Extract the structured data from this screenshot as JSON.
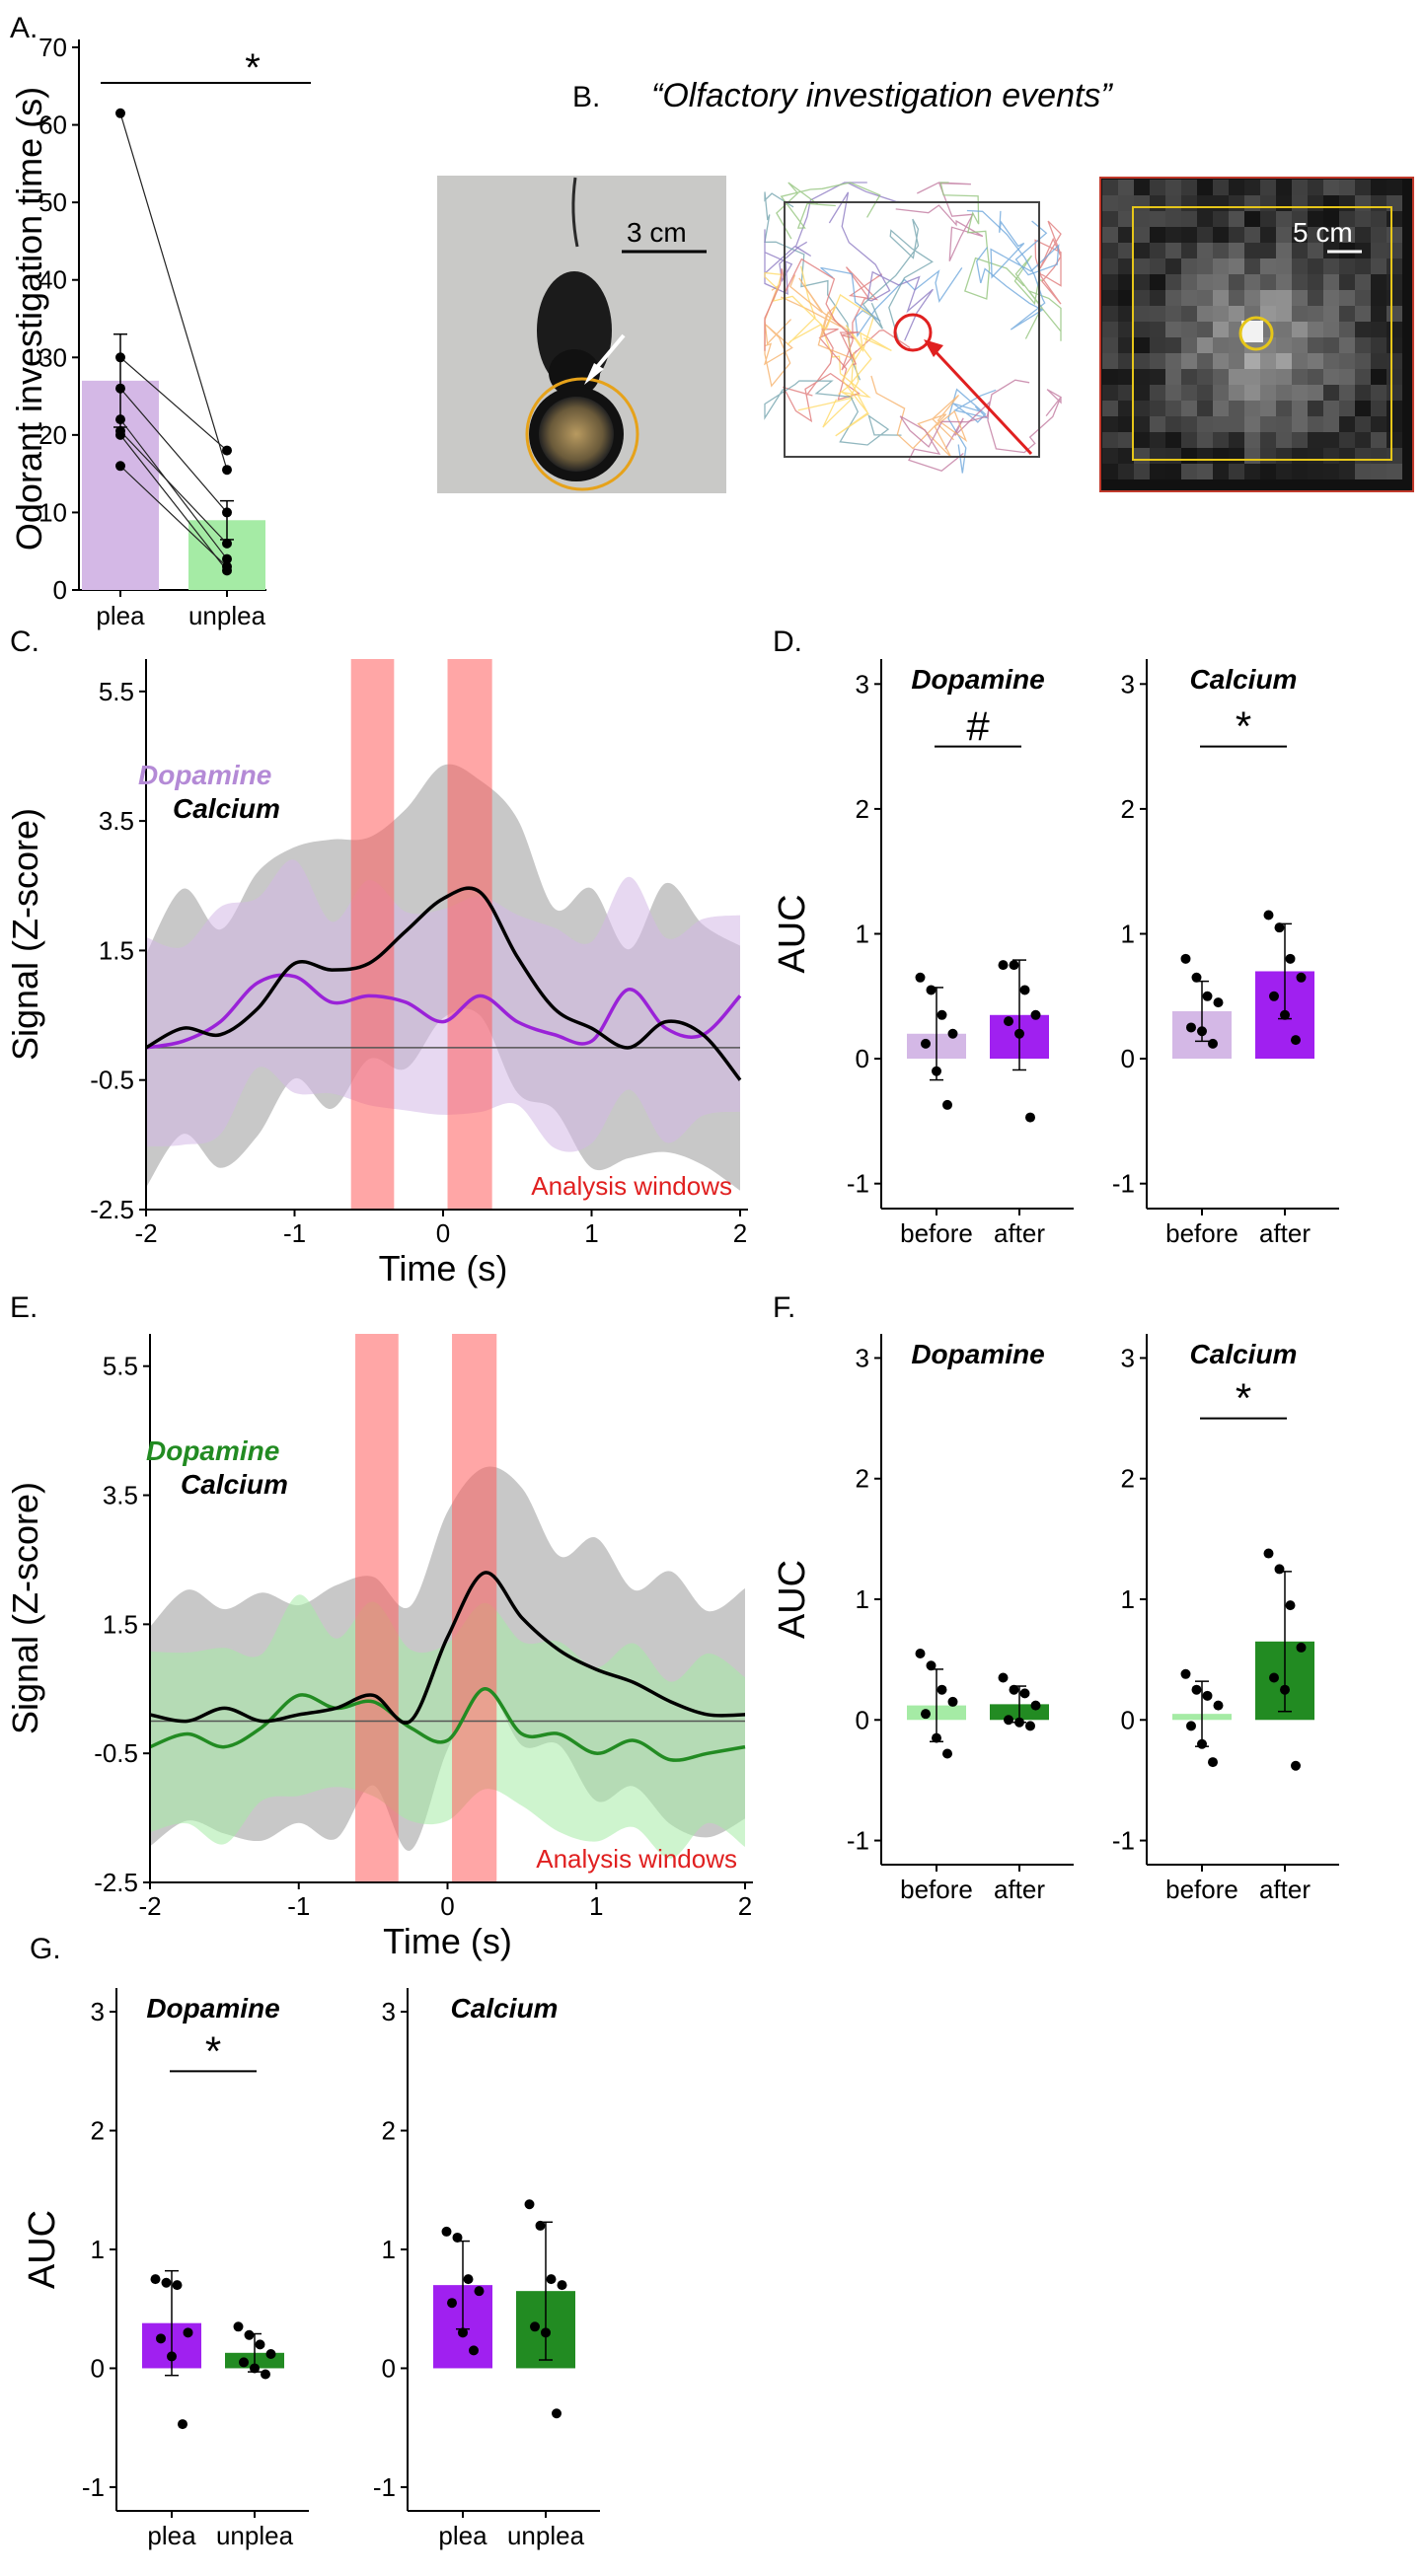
{
  "panels": {
    "A": "A.",
    "B": "B.",
    "C": "C.",
    "D": "D.",
    "E": "E.",
    "F": "F.",
    "G": "G."
  },
  "panel_b": {
    "title": "“Olfactory investigation events”",
    "scale1": "3 cm",
    "scale2": "5 cm"
  },
  "colors": {
    "light_purple": "#d4b8e6",
    "purple": "#a020f0",
    "light_green": "#a5eba5",
    "green": "#228b22",
    "red": "#ff5c5c",
    "black": "#000000"
  },
  "chart_data": [
    {
      "id": "A",
      "type": "bar",
      "ylabel": "Odorant investigation time (s)",
      "categories": [
        "plea",
        "unplea"
      ],
      "values": [
        27,
        9
      ],
      "errors": [
        6,
        2.5
      ],
      "ylim": [
        0,
        70
      ],
      "yticks": [
        0,
        10,
        20,
        30,
        40,
        50,
        60,
        70
      ],
      "paired_points": [
        [
          61.5,
          15.5
        ],
        [
          30,
          18
        ],
        [
          26,
          10
        ],
        [
          22,
          4
        ],
        [
          20.5,
          6
        ],
        [
          20,
          2.5
        ],
        [
          16,
          3
        ]
      ],
      "significance": "*"
    },
    {
      "id": "C",
      "type": "line",
      "xlabel": "Time (s)",
      "ylabel": "Signal (Z-score)",
      "xlim": [
        -2,
        2
      ],
      "ylim": [
        -2.5,
        6
      ],
      "xticks": [
        -2,
        -1,
        0,
        1,
        2
      ],
      "yticks": [
        5.5,
        3.5,
        1.5,
        -0.5,
        -2.5
      ],
      "legend": [
        "Dopamine",
        "Calcium"
      ],
      "annotation": "Analysis windows",
      "windows": [
        [
          -0.62,
          -0.33
        ],
        [
          0.03,
          0.33
        ]
      ],
      "x": [
        -2,
        -1.75,
        -1.5,
        -1.25,
        -1,
        -0.75,
        -0.5,
        -0.25,
        0,
        0.25,
        0.5,
        0.75,
        1,
        1.25,
        1.5,
        1.75,
        2
      ],
      "series": [
        {
          "name": "Calcium",
          "values": [
            0,
            0.3,
            0.2,
            0.6,
            1.3,
            1.2,
            1.3,
            1.8,
            2.3,
            2.4,
            1.4,
            0.6,
            0.3,
            0.0,
            0.4,
            0.2,
            -0.5
          ],
          "band": 1.8
        },
        {
          "name": "Dopamine",
          "values": [
            0,
            0.1,
            0.4,
            1.0,
            1.1,
            0.7,
            0.8,
            0.7,
            0.4,
            0.8,
            0.4,
            0.2,
            0.1,
            0.9,
            0.3,
            0.2,
            0.8
          ],
          "band": 1.5
        }
      ]
    },
    {
      "id": "D-dopamine",
      "type": "bar",
      "title": "Dopamine",
      "ylabel": "AUC",
      "categories": [
        "before",
        "after"
      ],
      "values": [
        0.2,
        0.35
      ],
      "errors": [
        0.37,
        0.44
      ],
      "ylim": [
        -1.2,
        3.2
      ],
      "yticks": [
        3,
        2,
        1,
        0,
        -1
      ],
      "points": [
        [
          0.65,
          0.55,
          0.35,
          0.2,
          0.12,
          -0.1,
          -0.37
        ],
        [
          0.75,
          0.75,
          0.55,
          0.35,
          0.3,
          0.2,
          -0.47
        ]
      ],
      "significance": "#"
    },
    {
      "id": "D-calcium",
      "type": "bar",
      "title": "Calcium",
      "categories": [
        "before",
        "after"
      ],
      "values": [
        0.38,
        0.7
      ],
      "errors": [
        0.24,
        0.38
      ],
      "ylim": [
        -1.2,
        3.2
      ],
      "yticks": [
        3,
        2,
        1,
        0,
        -1
      ],
      "points": [
        [
          0.8,
          0.65,
          0.5,
          0.45,
          0.25,
          0.22,
          0.12
        ],
        [
          1.15,
          1.05,
          0.8,
          0.65,
          0.5,
          0.35,
          0.15
        ]
      ],
      "significance": "*"
    },
    {
      "id": "E",
      "type": "line",
      "xlabel": "Time (s)",
      "ylabel": "Signal (Z-score)",
      "xlim": [
        -2,
        2
      ],
      "ylim": [
        -2.5,
        6
      ],
      "xticks": [
        -2,
        -1,
        0,
        1,
        2
      ],
      "yticks": [
        5.5,
        3.5,
        1.5,
        -0.5,
        -2.5
      ],
      "legend": [
        "Dopamine",
        "Calcium"
      ],
      "annotation": "Analysis windows",
      "windows": [
        [
          -0.62,
          -0.33
        ],
        [
          0.03,
          0.33
        ]
      ],
      "x": [
        -2,
        -1.75,
        -1.5,
        -1.25,
        -1,
        -0.75,
        -0.5,
        -0.25,
        0,
        0.25,
        0.5,
        0.75,
        1,
        1.25,
        1.5,
        1.75,
        2
      ],
      "series": [
        {
          "name": "Calcium",
          "values": [
            0.1,
            0,
            0.2,
            0.0,
            0.1,
            0.2,
            0.4,
            0.0,
            1.3,
            2.3,
            1.6,
            1.1,
            0.8,
            0.6,
            0.3,
            0.1,
            0.1
          ],
          "band": 1.7
        },
        {
          "name": "Dopamine",
          "values": [
            -0.4,
            -0.2,
            -0.4,
            -0.1,
            0.4,
            0.2,
            0.3,
            -0.1,
            -0.3,
            0.5,
            -0.2,
            -0.2,
            -0.5,
            -0.3,
            -0.6,
            -0.5,
            -0.4
          ],
          "band": 1.3
        }
      ]
    },
    {
      "id": "F-dopamine",
      "type": "bar",
      "title": "Dopamine",
      "ylabel": "AUC",
      "categories": [
        "before",
        "after"
      ],
      "values": [
        0.12,
        0.13
      ],
      "errors": [
        0.3,
        0.15
      ],
      "ylim": [
        -1.2,
        3.2
      ],
      "yticks": [
        3,
        2,
        1,
        0,
        -1
      ],
      "points": [
        [
          0.55,
          0.45,
          0.25,
          0.15,
          0.05,
          -0.15,
          -0.28
        ],
        [
          0.35,
          0.25,
          0.22,
          0.12,
          0.0,
          -0.02,
          -0.05
        ]
      ],
      "significance": ""
    },
    {
      "id": "F-calcium",
      "type": "bar",
      "title": "Calcium",
      "categories": [
        "before",
        "after"
      ],
      "values": [
        0.05,
        0.65
      ],
      "errors": [
        0.27,
        0.58
      ],
      "ylim": [
        -1.2,
        3.2
      ],
      "yticks": [
        3,
        2,
        1,
        0,
        -1
      ],
      "points": [
        [
          0.38,
          0.25,
          0.2,
          0.12,
          -0.05,
          -0.2,
          -0.35
        ],
        [
          1.38,
          1.25,
          0.95,
          0.6,
          0.35,
          0.25,
          -0.38
        ]
      ],
      "significance": "*"
    },
    {
      "id": "G-dopamine",
      "type": "bar",
      "title": "Dopamine",
      "ylabel": "AUC",
      "categories": [
        "plea",
        "unplea"
      ],
      "values": [
        0.38,
        0.13
      ],
      "errors": [
        0.44,
        0.16
      ],
      "ylim": [
        -1.2,
        3.2
      ],
      "yticks": [
        3,
        2,
        1,
        0,
        -1
      ],
      "points": [
        [
          0.75,
          0.72,
          0.7,
          0.3,
          0.25,
          0.1,
          -0.47
        ],
        [
          0.35,
          0.28,
          0.2,
          0.12,
          0.05,
          0.0,
          -0.05
        ]
      ],
      "significance": "*"
    },
    {
      "id": "G-calcium",
      "type": "bar",
      "title": "Calcium",
      "categories": [
        "plea",
        "unplea"
      ],
      "values": [
        0.7,
        0.65
      ],
      "errors": [
        0.37,
        0.58
      ],
      "ylim": [
        -1.2,
        3.2
      ],
      "yticks": [
        3,
        2,
        1,
        0,
        -1
      ],
      "points": [
        [
          1.15,
          1.1,
          0.75,
          0.65,
          0.55,
          0.3,
          0.15
        ],
        [
          1.38,
          1.2,
          0.75,
          0.7,
          0.35,
          0.3,
          -0.38
        ]
      ],
      "significance": ""
    }
  ]
}
